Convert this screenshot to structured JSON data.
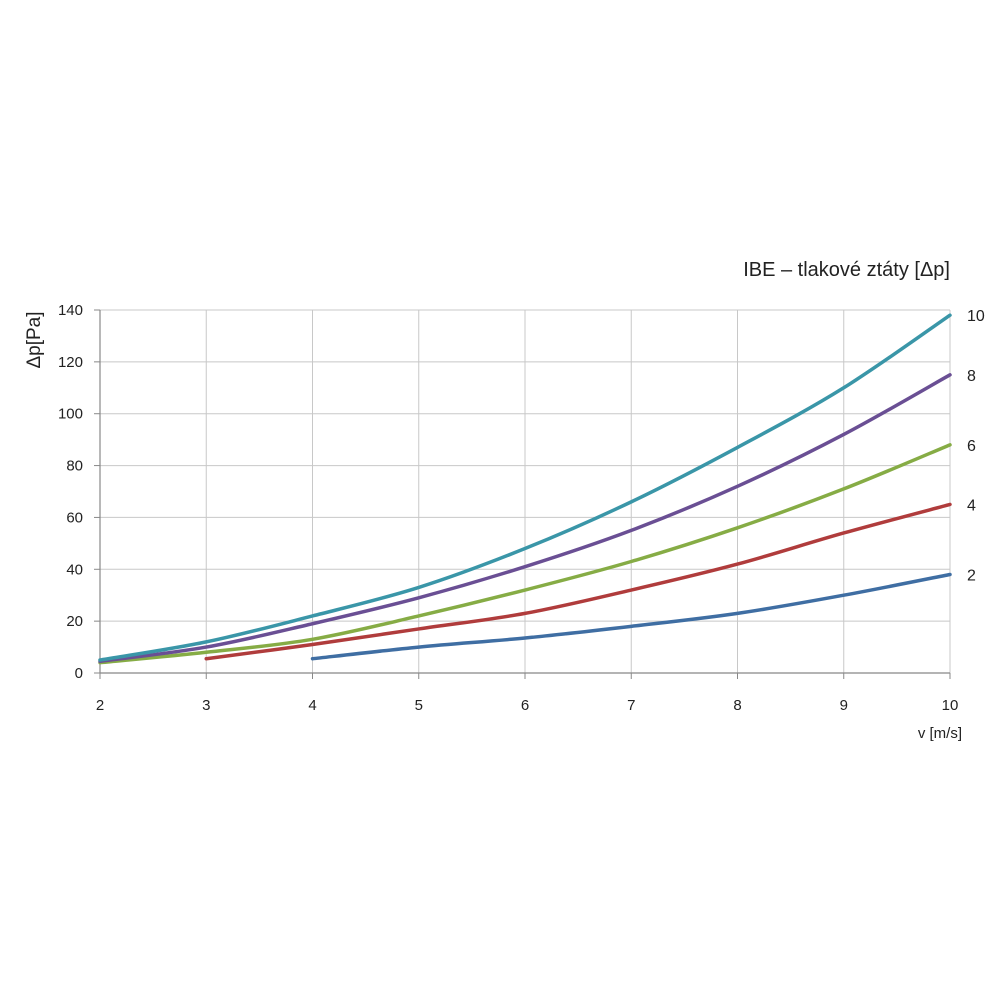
{
  "chart_data": {
    "type": "line",
    "title": "IBE – tlakové ztáty [Δp]",
    "xlabel": "v [m/s]",
    "ylabel": "Δp[Pa]",
    "xlim": [
      2,
      10
    ],
    "ylim": [
      0,
      140
    ],
    "x_ticks": [
      "2",
      "3",
      "4",
      "5",
      "6",
      "7",
      "8",
      "9",
      "10"
    ],
    "y_ticks": [
      "0",
      "20",
      "40",
      "60",
      "80",
      "100",
      "120",
      "140"
    ],
    "grid": true,
    "series": [
      {
        "name": "10",
        "color": "#3a96a8",
        "x": [
          2,
          3,
          4,
          5,
          6,
          7,
          8,
          9,
          10
        ],
        "y": [
          5,
          12,
          22,
          33,
          48,
          66,
          87,
          110,
          138
        ]
      },
      {
        "name": "8",
        "color": "#6a4f94",
        "x": [
          2,
          3,
          4,
          5,
          6,
          7,
          8,
          9,
          10
        ],
        "y": [
          4.5,
          10,
          19,
          29,
          41,
          55,
          72,
          92,
          115
        ]
      },
      {
        "name": "6",
        "color": "#86ac45",
        "x": [
          2,
          3,
          4,
          5,
          6,
          7,
          8,
          9,
          10
        ],
        "y": [
          4,
          8,
          13,
          22,
          32,
          43,
          56,
          71,
          88
        ]
      },
      {
        "name": "4",
        "color": "#b03c3c",
        "x": [
          3,
          4,
          5,
          6,
          7,
          8,
          9,
          10
        ],
        "y": [
          5.5,
          11,
          17,
          23,
          32,
          42,
          54,
          65
        ]
      },
      {
        "name": "2",
        "color": "#3f6ea3",
        "x": [
          4,
          5,
          6,
          7,
          8,
          9,
          10
        ],
        "y": [
          5.5,
          10,
          13.5,
          18,
          23,
          30,
          38
        ]
      }
    ]
  }
}
